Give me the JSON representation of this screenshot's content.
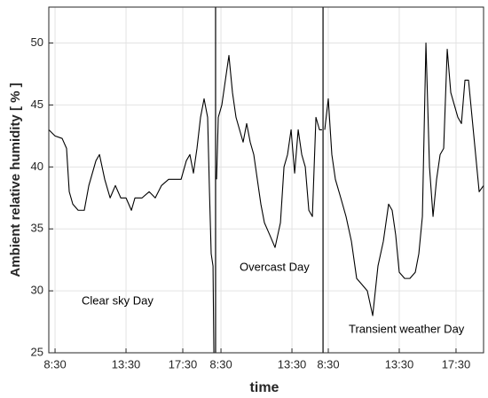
{
  "chart_data": {
    "type": "line",
    "xlabel": "time",
    "ylabel": "Ambient relative humidity [ % ]",
    "annotations": [
      "Clear sky Day",
      "Overcast Day",
      "Transient weather Day"
    ],
    "color": "#000000",
    "grid": true,
    "xlim": [
      8.06,
      38.69
    ],
    "ylim": [
      25,
      52.9
    ],
    "yticks": [
      25,
      30,
      35,
      40,
      45,
      50
    ],
    "xticks": [
      {
        "value": 8.5,
        "label": "8:30"
      },
      {
        "value": 13.5,
        "label": "13:30"
      },
      {
        "value": 17.5,
        "label": "17:30"
      },
      {
        "value": 20.19,
        "label": "8:30"
      },
      {
        "value": 25.19,
        "label": "13:30"
      },
      {
        "value": 27.75,
        "label": "8:30"
      },
      {
        "value": 32.75,
        "label": "13:30"
      },
      {
        "value": 36.75,
        "label": "17:30"
      }
    ],
    "day_boundaries": [
      19.81,
      27.38
    ],
    "x": [
      8.06,
      8.5,
      9,
      9.31,
      9.5,
      9.75,
      10.13,
      10.56,
      10.88,
      11.38,
      11.63,
      12,
      12.38,
      12.75,
      13.13,
      13.5,
      13.88,
      14.13,
      14.63,
      15.13,
      15.56,
      16,
      16.5,
      17,
      17.38,
      17.75,
      18,
      18.25,
      18.5,
      18.75,
      19,
      19.25,
      19.38,
      19.5,
      19.63,
      19.69,
      19.81,
      19.88,
      20,
      20.25,
      20.5,
      20.75,
      21,
      21.25,
      21.5,
      21.75,
      22,
      22.25,
      22.5,
      22.75,
      23,
      23.25,
      23.63,
      24,
      24.38,
      24.63,
      24.88,
      25.13,
      25.38,
      25.63,
      25.88,
      26.13,
      26.38,
      26.63,
      26.88,
      27.13,
      27.31,
      27.38,
      27.5,
      27.75,
      28,
      28.25,
      28.63,
      29,
      29.38,
      29.75,
      30.13,
      30.5,
      30.88,
      31.25,
      31.63,
      32,
      32.25,
      32.5,
      32.75,
      33.13,
      33.5,
      33.88,
      34.13,
      34.38,
      34.63,
      34.88,
      35.13,
      35.38,
      35.63,
      35.88,
      36.13,
      36.38,
      36.63,
      36.88,
      37.13,
      37.38,
      37.63,
      37.88,
      38.13,
      38.38,
      38.69
    ],
    "values": [
      43,
      42.5,
      42.3,
      41.5,
      38,
      37,
      36.5,
      36.5,
      38.5,
      40.5,
      41,
      39,
      37.5,
      38.5,
      37.5,
      37.5,
      36.5,
      37.5,
      37.5,
      38,
      37.5,
      38.5,
      39,
      39,
      39,
      40.5,
      41,
      39.5,
      41.5,
      44,
      45.5,
      44,
      38,
      33,
      32,
      25,
      null,
      39,
      44,
      45,
      47,
      49,
      46,
      44,
      43,
      42,
      43.5,
      42,
      41,
      39,
      37,
      35.5,
      34.5,
      33.5,
      35.5,
      40,
      41,
      43,
      39.5,
      43,
      41,
      40,
      36.5,
      36,
      44,
      43,
      43,
      null,
      43,
      45.5,
      41,
      39,
      37.5,
      36,
      34,
      31,
      30.5,
      30,
      28,
      32,
      34,
      37,
      36.5,
      34.5,
      31.5,
      31,
      31,
      31.5,
      33,
      36,
      50,
      40,
      36,
      39,
      41,
      41.5,
      49.5,
      46,
      45,
      44,
      43.5,
      47,
      47,
      44,
      41,
      38,
      38.5
    ]
  }
}
